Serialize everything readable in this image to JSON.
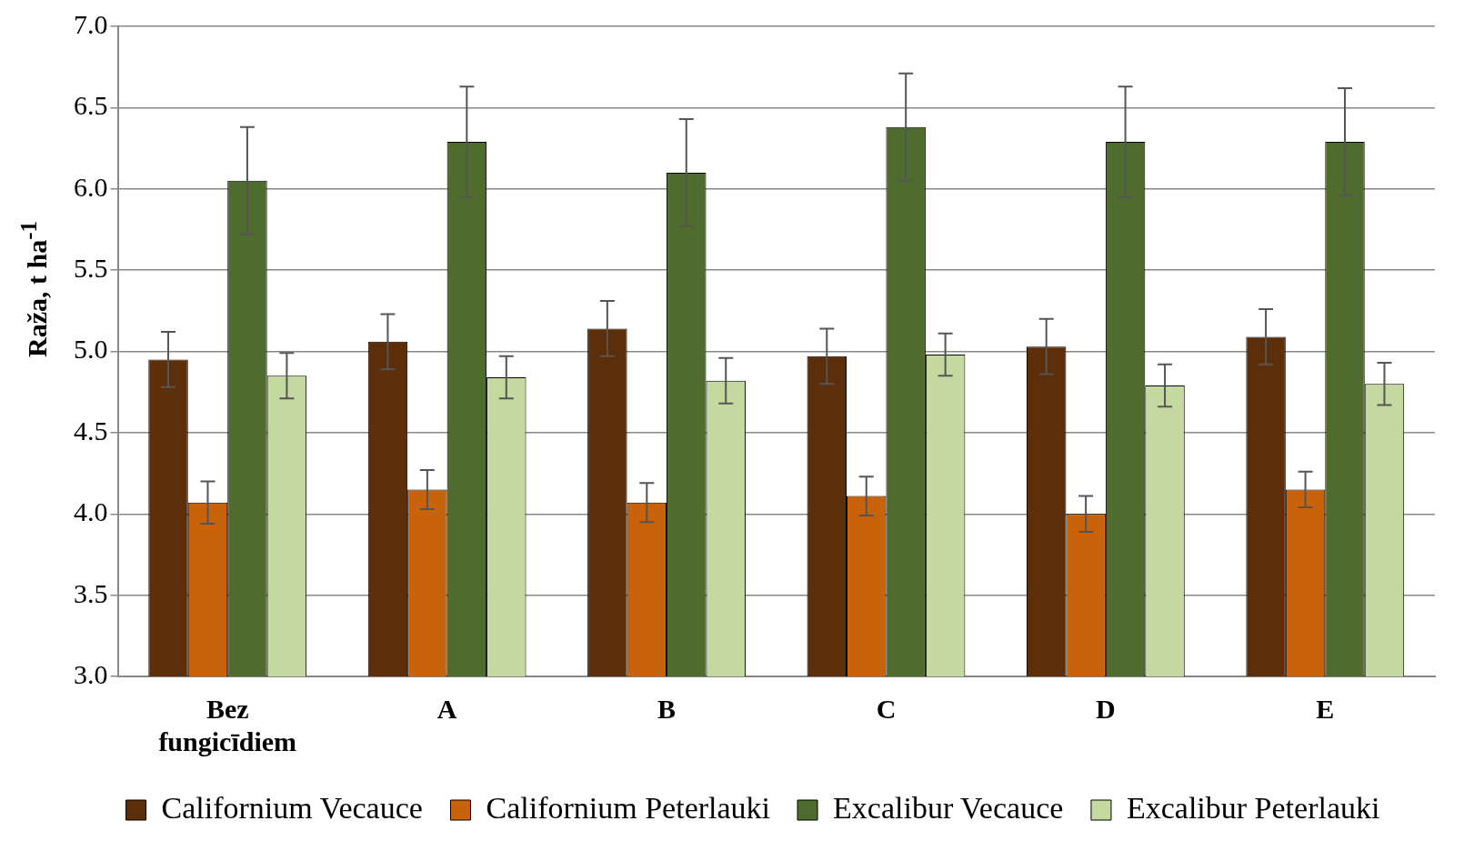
{
  "chart_data": {
    "type": "bar",
    "ylabel": "Raža, t ha$^{-1}$",
    "categories": [
      "Bez fungicīdiem",
      "A",
      "B",
      "C",
      "D",
      "E"
    ],
    "series": [
      {
        "name": "Californium Vecauce",
        "color": "#5c2e0a",
        "values": [
          4.95,
          5.06,
          5.14,
          4.97,
          5.03,
          5.09
        ],
        "errors": [
          0.17,
          0.17,
          0.17,
          0.17,
          0.17,
          0.17
        ]
      },
      {
        "name": "Californium Peterlauki",
        "color": "#c8630b",
        "values": [
          4.07,
          4.15,
          4.07,
          4.11,
          4.0,
          4.15
        ],
        "errors": [
          0.13,
          0.12,
          0.12,
          0.12,
          0.11,
          0.11
        ]
      },
      {
        "name": "Excalibur Vecauce",
        "color": "#4f6b2e",
        "values": [
          6.05,
          6.29,
          6.1,
          6.38,
          6.29,
          6.29
        ],
        "errors": [
          0.33,
          0.34,
          0.33,
          0.33,
          0.34,
          0.33
        ]
      },
      {
        "name": "Excalibur Peterlauki",
        "color": "#c4d9a0",
        "values": [
          4.85,
          4.84,
          4.82,
          4.98,
          4.79,
          4.8
        ],
        "errors": [
          0.14,
          0.13,
          0.14,
          0.13,
          0.13,
          0.13
        ]
      }
    ],
    "ylim": [
      3.0,
      7.0
    ],
    "yticks": [
      {
        "value": 3,
        "label": "3.0"
      },
      {
        "value": 3.5,
        "label": "3.5"
      },
      {
        "value": 4,
        "label": "4.0"
      },
      {
        "value": 4.5,
        "label": "4.5"
      },
      {
        "value": 5,
        "label": "5.0"
      },
      {
        "value": 5.5,
        "label": "5.5"
      },
      {
        "value": 6,
        "label": "6.0"
      },
      {
        "value": 6.5,
        "label": "6.5"
      },
      {
        "value": 7,
        "label": "7.0"
      }
    ],
    "grid": "y",
    "legend": "bottom"
  }
}
